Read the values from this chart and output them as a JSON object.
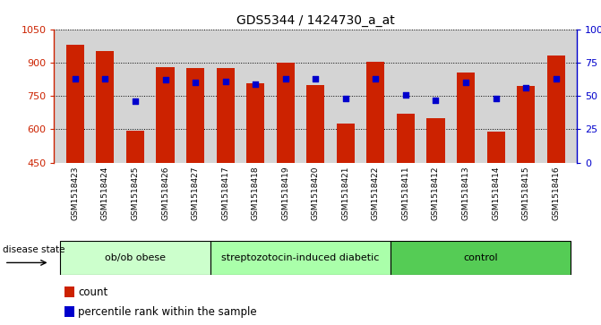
{
  "title": "GDS5344 / 1424730_a_at",
  "samples": [
    "GSM1518423",
    "GSM1518424",
    "GSM1518425",
    "GSM1518426",
    "GSM1518427",
    "GSM1518417",
    "GSM1518418",
    "GSM1518419",
    "GSM1518420",
    "GSM1518421",
    "GSM1518422",
    "GSM1518411",
    "GSM1518412",
    "GSM1518413",
    "GSM1518414",
    "GSM1518415",
    "GSM1518416"
  ],
  "counts": [
    980,
    950,
    595,
    880,
    875,
    875,
    805,
    900,
    800,
    625,
    905,
    670,
    650,
    855,
    590,
    795,
    930
  ],
  "percentiles": [
    63,
    63,
    46,
    62,
    60,
    61,
    59,
    63,
    63,
    48,
    63,
    51,
    47,
    60,
    48,
    56,
    63
  ],
  "groups": [
    {
      "label": "ob/ob obese",
      "start": 0,
      "end": 5
    },
    {
      "label": "streptozotocin-induced diabetic",
      "start": 5,
      "end": 11
    },
    {
      "label": "control",
      "start": 11,
      "end": 17
    }
  ],
  "group_colors": [
    "#ccffcc",
    "#aaffaa",
    "#55cc55"
  ],
  "ylim_left": [
    450,
    1050
  ],
  "ylim_right": [
    0,
    100
  ],
  "yticks_left": [
    450,
    600,
    750,
    900,
    1050
  ],
  "yticks_right": [
    0,
    25,
    50,
    75,
    100
  ],
  "bar_color": "#cc2200",
  "dot_color": "#0000cc",
  "plot_bg_color": "#d4d4d4",
  "xtick_bg_color": "#c8c8c8",
  "left_axis_color": "#cc2200",
  "right_axis_color": "#0000cc",
  "bar_width": 0.6,
  "fig_width": 6.71,
  "fig_height": 3.63
}
